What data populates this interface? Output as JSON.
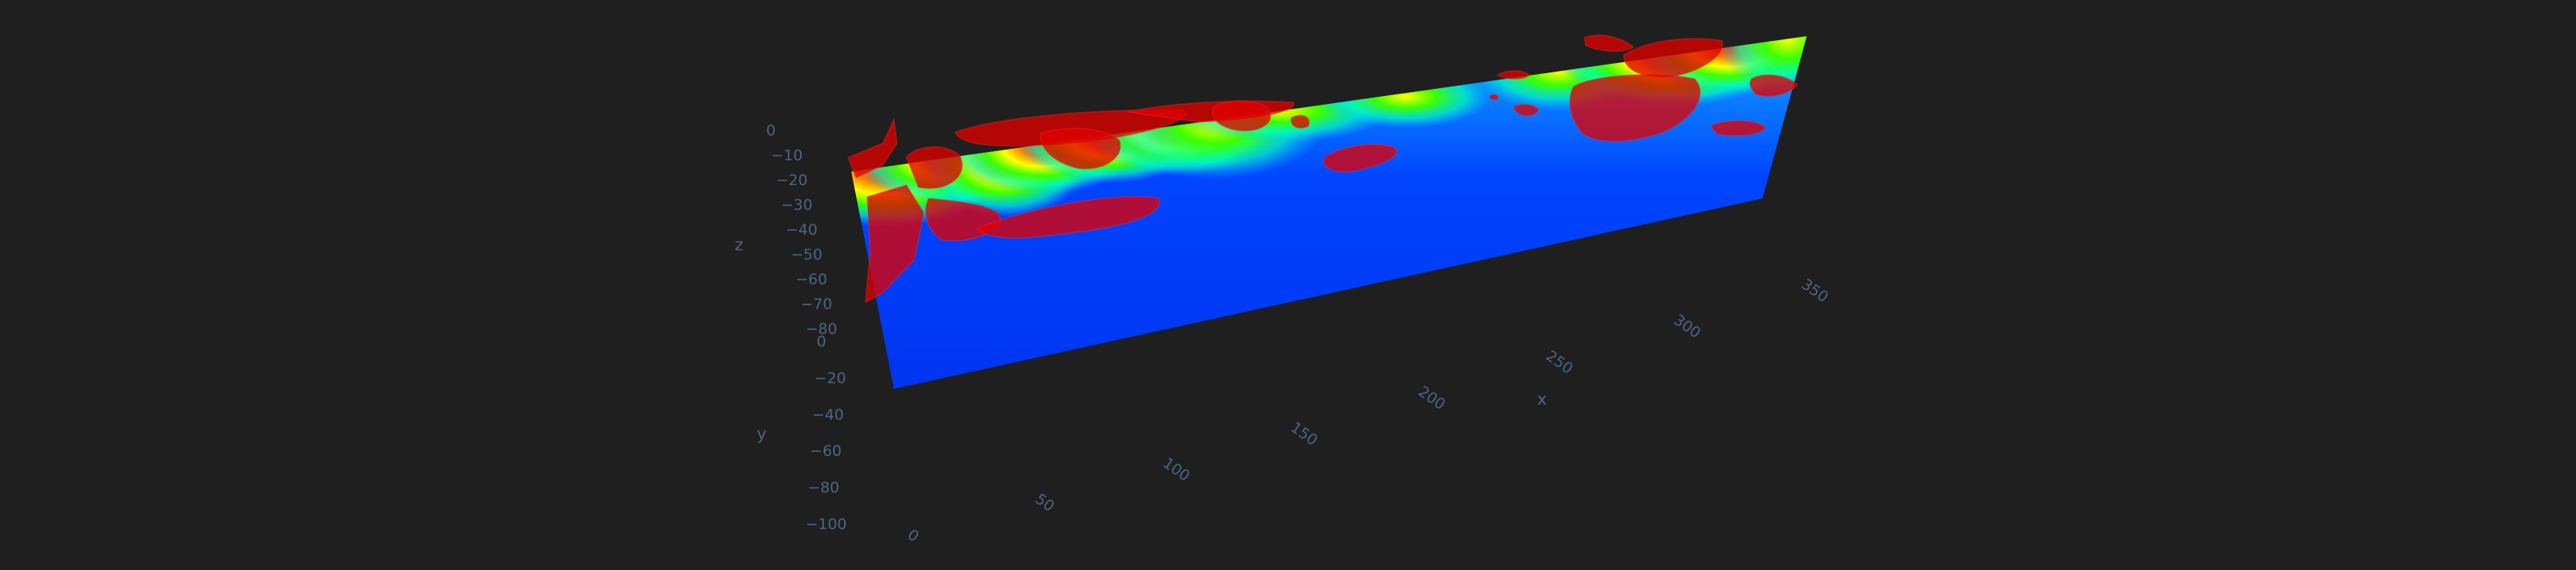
{
  "chart_data": {
    "type": "heatmap",
    "description_kind": "3d-section",
    "x_axis": {
      "title": "x",
      "ticks": [
        "0",
        "50",
        "100",
        "150",
        "200",
        "250",
        "300",
        "350"
      ],
      "range": [
        0,
        350
      ]
    },
    "y_axis": {
      "title": "y",
      "ticks": [
        "0",
        "−20",
        "−40",
        "−60",
        "−80",
        "−100"
      ],
      "range": [
        -100,
        0
      ]
    },
    "z_axis": {
      "title": "z",
      "ticks": [
        "0",
        "−10",
        "−20",
        "−30",
        "−40",
        "−50",
        "−60",
        "−70",
        "−80"
      ],
      "range": [
        -80,
        0
      ]
    },
    "colorscale": [
      "#0038ff",
      "#00b4ff",
      "#00ffb0",
      "#3cff00",
      "#ffff00",
      "#ff8c00",
      "#ff1a00"
    ],
    "isosurface_color": "#e00000",
    "grid": false
  },
  "theme": {
    "background": "#1f1f1f",
    "tick_color": "#4f6480"
  }
}
